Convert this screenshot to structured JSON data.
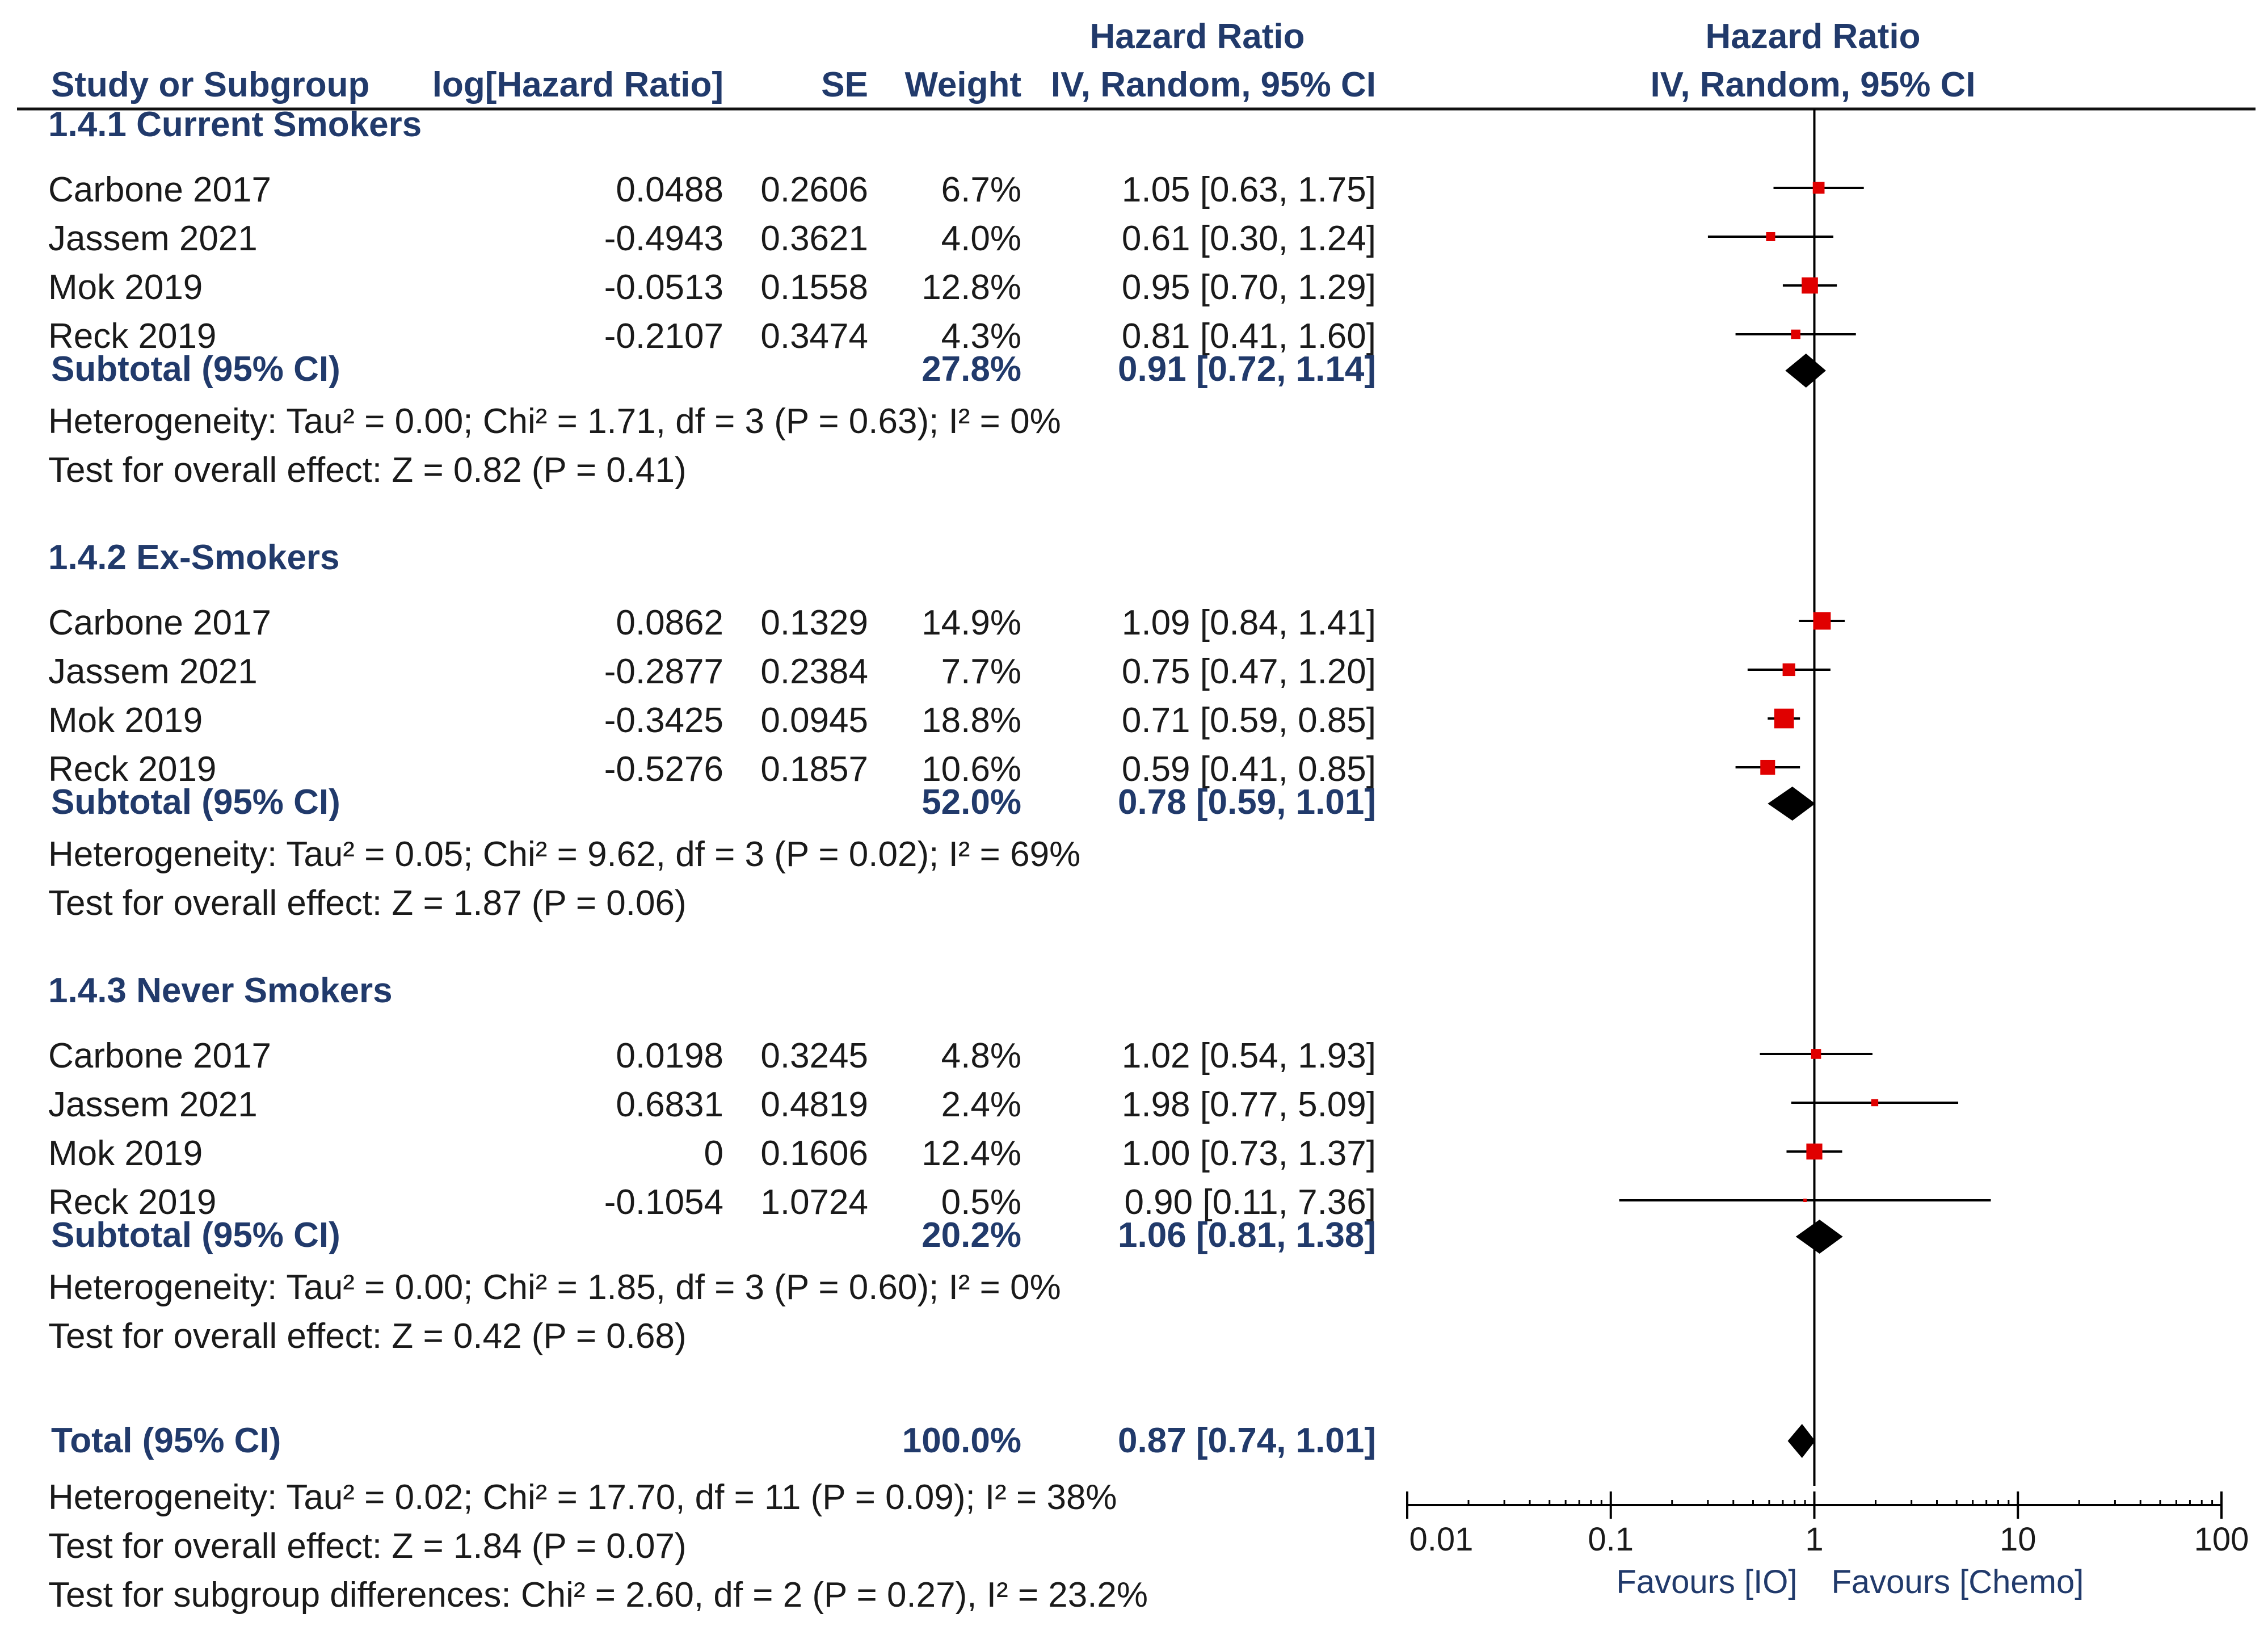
{
  "headers": {
    "hr_left_top": "Hazard Ratio",
    "hr_right_top": "Hazard Ratio",
    "study": "Study or Subgroup",
    "loghr": "log[Hazard Ratio]",
    "se": "SE",
    "weight": "Weight",
    "ci_left": "IV, Random, 95% CI",
    "ci_right": "IV, Random, 95% CI"
  },
  "chart_data": {
    "type": "forest",
    "scale": "log",
    "null_line": 1,
    "axis": {
      "ticks": [
        0.01,
        0.1,
        1,
        10,
        100
      ],
      "tick_labels": [
        "0.01",
        "0.1",
        "1",
        "10",
        "100"
      ],
      "xlim": [
        0.01,
        100
      ],
      "favours_left": "Favours [IO]",
      "favours_right": "Favours [Chemo]"
    },
    "marker_color": "#e00000",
    "groups": [
      {
        "title": "1.4.1 Current Smokers",
        "studies": [
          {
            "name": "Carbone 2017",
            "loghr": "0.0488",
            "se": "0.2606",
            "weight": "6.7%",
            "ci_text": "1.05 [0.63, 1.75]",
            "hr": 1.05,
            "lo": 0.63,
            "hi": 1.75,
            "w": 6.7
          },
          {
            "name": "Jassem 2021",
            "loghr": "-0.4943",
            "se": "0.3621",
            "weight": "4.0%",
            "ci_text": "0.61 [0.30, 1.24]",
            "hr": 0.61,
            "lo": 0.3,
            "hi": 1.24,
            "w": 4.0
          },
          {
            "name": "Mok 2019",
            "loghr": "-0.0513",
            "se": "0.1558",
            "weight": "12.8%",
            "ci_text": "0.95 [0.70, 1.29]",
            "hr": 0.95,
            "lo": 0.7,
            "hi": 1.29,
            "w": 12.8
          },
          {
            "name": "Reck 2019",
            "loghr": "-0.2107",
            "se": "0.3474",
            "weight": "4.3%",
            "ci_text": "0.81 [0.41, 1.60]",
            "hr": 0.81,
            "lo": 0.41,
            "hi": 1.6,
            "w": 4.3
          }
        ],
        "subtotal": {
          "label": "Subtotal (95% CI)",
          "weight": "27.8%",
          "ci_text": "0.91 [0.72, 1.14]",
          "hr": 0.91,
          "lo": 0.72,
          "hi": 1.14
        },
        "heterogeneity": "Heterogeneity: Tau² = 0.00; Chi² = 1.71, df = 3 (P = 0.63); I² = 0%",
        "overall_effect": "Test for overall effect: Z = 0.82 (P = 0.41)"
      },
      {
        "title": "1.4.2 Ex-Smokers",
        "studies": [
          {
            "name": "Carbone 2017",
            "loghr": "0.0862",
            "se": "0.1329",
            "weight": "14.9%",
            "ci_text": "1.09 [0.84, 1.41]",
            "hr": 1.09,
            "lo": 0.84,
            "hi": 1.41,
            "w": 14.9
          },
          {
            "name": "Jassem 2021",
            "loghr": "-0.2877",
            "se": "0.2384",
            "weight": "7.7%",
            "ci_text": "0.75 [0.47, 1.20]",
            "hr": 0.75,
            "lo": 0.47,
            "hi": 1.2,
            "w": 7.7
          },
          {
            "name": "Mok 2019",
            "loghr": "-0.3425",
            "se": "0.0945",
            "weight": "18.8%",
            "ci_text": "0.71 [0.59, 0.85]",
            "hr": 0.71,
            "lo": 0.59,
            "hi": 0.85,
            "w": 18.8
          },
          {
            "name": "Reck 2019",
            "loghr": "-0.5276",
            "se": "0.1857",
            "weight": "10.6%",
            "ci_text": "0.59 [0.41, 0.85]",
            "hr": 0.59,
            "lo": 0.41,
            "hi": 0.85,
            "w": 10.6
          }
        ],
        "subtotal": {
          "label": "Subtotal (95% CI)",
          "weight": "52.0%",
          "ci_text": "0.78 [0.59, 1.01]",
          "hr": 0.78,
          "lo": 0.59,
          "hi": 1.01
        },
        "heterogeneity": "Heterogeneity: Tau² = 0.05; Chi² = 9.62, df = 3 (P = 0.02); I² = 69%",
        "overall_effect": "Test for overall effect: Z = 1.87 (P = 0.06)"
      },
      {
        "title": "1.4.3 Never Smokers",
        "studies": [
          {
            "name": "Carbone 2017",
            "loghr": "0.0198",
            "se": "0.3245",
            "weight": "4.8%",
            "ci_text": "1.02 [0.54, 1.93]",
            "hr": 1.02,
            "lo": 0.54,
            "hi": 1.93,
            "w": 4.8
          },
          {
            "name": "Jassem 2021",
            "loghr": "0.6831",
            "se": "0.4819",
            "weight": "2.4%",
            "ci_text": "1.98 [0.77, 5.09]",
            "hr": 1.98,
            "lo": 0.77,
            "hi": 5.09,
            "w": 2.4
          },
          {
            "name": "Mok 2019",
            "loghr": "0",
            "se": "0.1606",
            "weight": "12.4%",
            "ci_text": "1.00 [0.73, 1.37]",
            "hr": 1.0,
            "lo": 0.73,
            "hi": 1.37,
            "w": 12.4
          },
          {
            "name": "Reck 2019",
            "loghr": "-0.1054",
            "se": "1.0724",
            "weight": "0.5%",
            "ci_text": "0.90 [0.11, 7.36]",
            "hr": 0.9,
            "lo": 0.11,
            "hi": 7.36,
            "w": 0.5
          }
        ],
        "subtotal": {
          "label": "Subtotal (95% CI)",
          "weight": "20.2%",
          "ci_text": "1.06 [0.81, 1.38]",
          "hr": 1.06,
          "lo": 0.81,
          "hi": 1.38
        },
        "heterogeneity": "Heterogeneity: Tau² = 0.00; Chi² = 1.85, df = 3 (P = 0.60); I² = 0%",
        "overall_effect": "Test for overall effect: Z = 0.42 (P = 0.68)"
      }
    ],
    "total": {
      "label": "Total (95% CI)",
      "weight": "100.0%",
      "ci_text": "0.87 [0.74, 1.01]",
      "hr": 0.87,
      "lo": 0.74,
      "hi": 1.01,
      "heterogeneity": "Heterogeneity: Tau² = 0.02; Chi² = 17.70, df = 11 (P = 0.09); I² = 38%",
      "overall_effect": "Test for overall effect: Z = 1.84 (P = 0.07)",
      "subgroup_diff": "Test for subgroup differences: Chi² = 2.60, df = 2 (P = 0.27), I² = 23.2%"
    }
  }
}
